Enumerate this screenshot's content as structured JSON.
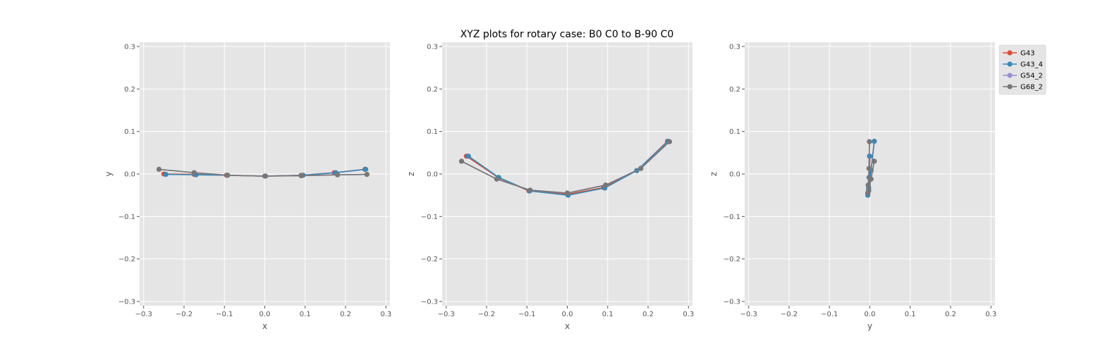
{
  "figure": {
    "title": "XYZ plots for rotary case: B0 C0 to B-90 C0"
  },
  "chart_data": [
    {
      "type": "line",
      "xlabel": "x",
      "ylabel": "y",
      "xlim": [
        -0.31,
        0.31
      ],
      "ylim": [
        -0.31,
        0.31
      ],
      "ticks": [
        -0.3,
        -0.2,
        -0.1,
        0.0,
        0.1,
        0.2,
        0.3
      ],
      "tick_labels": [
        "−0.3",
        "−0.2",
        "−0.1",
        "0.0",
        "0.1",
        "0.2",
        "0.3"
      ],
      "grid": true,
      "series": [
        {
          "name": "G43",
          "color": "#E24A33",
          "x": [
            -0.25,
            -0.175,
            -0.095,
            0.0,
            0.09,
            0.172,
            0.248
          ],
          "y": [
            0.0,
            -0.001,
            -0.003,
            -0.005,
            -0.003,
            0.003,
            0.011
          ]
        },
        {
          "name": "G43_4",
          "color": "#348ABD",
          "x": [
            -0.245,
            -0.17,
            -0.093,
            0.002,
            0.095,
            0.176,
            0.25
          ],
          "y": [
            -0.001,
            -0.002,
            -0.003,
            -0.005,
            -0.003,
            0.003,
            0.011
          ]
        },
        {
          "name": "G54_2",
          "color": "#988ED5",
          "x": [
            -0.262,
            -0.175,
            -0.092,
            0.0,
            0.09,
            0.18,
            0.253
          ],
          "y": [
            0.011,
            0.003,
            -0.003,
            -0.005,
            -0.004,
            -0.002,
            -0.001
          ]
        },
        {
          "name": "G68_2",
          "color": "#777777",
          "x": [
            -0.262,
            -0.175,
            -0.092,
            0.0,
            0.09,
            0.18,
            0.253
          ],
          "y": [
            0.011,
            0.003,
            -0.003,
            -0.005,
            -0.004,
            -0.002,
            -0.001
          ]
        }
      ]
    },
    {
      "type": "line",
      "xlabel": "x",
      "ylabel": "z",
      "xlim": [
        -0.31,
        0.31
      ],
      "ylim": [
        -0.31,
        0.31
      ],
      "ticks": [
        -0.3,
        -0.2,
        -0.1,
        0.0,
        0.1,
        0.2,
        0.3
      ],
      "tick_labels": [
        "−0.3",
        "−0.2",
        "−0.1",
        "0.0",
        "0.1",
        "0.2",
        "0.3"
      ],
      "grid": true,
      "series": [
        {
          "name": "G43",
          "color": "#E24A33",
          "x": [
            -0.25,
            -0.17,
            -0.095,
            0.0,
            0.09,
            0.172,
            0.248
          ],
          "y": [
            0.042,
            -0.009,
            -0.04,
            -0.048,
            -0.032,
            0.008,
            0.077
          ]
        },
        {
          "name": "G43_4",
          "color": "#348ABD",
          "x": [
            -0.245,
            -0.17,
            -0.093,
            0.002,
            0.093,
            0.172,
            0.25
          ],
          "y": [
            0.042,
            -0.008,
            -0.04,
            -0.05,
            -0.033,
            0.008,
            0.077
          ]
        },
        {
          "name": "G54_2",
          "color": "#988ED5",
          "x": [
            -0.262,
            -0.175,
            -0.092,
            0.0,
            0.095,
            0.182,
            0.253
          ],
          "y": [
            0.03,
            -0.012,
            -0.038,
            -0.045,
            -0.026,
            0.013,
            0.076
          ]
        },
        {
          "name": "G68_2",
          "color": "#777777",
          "x": [
            -0.262,
            -0.175,
            -0.092,
            0.0,
            0.095,
            0.182,
            0.253
          ],
          "y": [
            0.03,
            -0.012,
            -0.038,
            -0.045,
            -0.026,
            0.013,
            0.076
          ]
        }
      ]
    },
    {
      "type": "line",
      "xlabel": "y",
      "ylabel": "z",
      "xlim": [
        -0.31,
        0.31
      ],
      "ylim": [
        -0.31,
        0.31
      ],
      "ticks": [
        -0.3,
        -0.2,
        -0.1,
        0.0,
        0.1,
        0.2,
        0.3
      ],
      "tick_labels": [
        "−0.3",
        "−0.2",
        "−0.1",
        "0.0",
        "0.1",
        "0.2",
        "0.3"
      ],
      "grid": true,
      "legend": {
        "placement": "outside-upper-right",
        "entries": [
          "G43",
          "G43_4",
          "G54_2",
          "G68_2"
        ]
      },
      "series": [
        {
          "name": "G43",
          "color": "#E24A33",
          "x": [
            0.0,
            -0.001,
            -0.003,
            -0.005,
            -0.003,
            0.003,
            0.011
          ],
          "y": [
            0.042,
            -0.009,
            -0.04,
            -0.048,
            -0.032,
            0.008,
            0.077
          ]
        },
        {
          "name": "G43_4",
          "color": "#348ABD",
          "x": [
            -0.001,
            -0.002,
            -0.003,
            -0.005,
            -0.003,
            0.003,
            0.011
          ],
          "y": [
            0.042,
            -0.008,
            -0.04,
            -0.05,
            -0.033,
            0.008,
            0.077
          ]
        },
        {
          "name": "G54_2",
          "color": "#988ED5",
          "x": [
            0.011,
            0.003,
            -0.003,
            -0.005,
            -0.004,
            -0.002,
            -0.001
          ],
          "y": [
            0.03,
            -0.012,
            -0.038,
            -0.045,
            -0.026,
            0.013,
            0.076
          ]
        },
        {
          "name": "G68_2",
          "color": "#777777",
          "x": [
            0.011,
            0.003,
            -0.003,
            -0.005,
            -0.004,
            -0.002,
            -0.001
          ],
          "y": [
            0.03,
            -0.012,
            -0.038,
            -0.045,
            -0.026,
            0.013,
            0.076
          ]
        }
      ]
    }
  ]
}
